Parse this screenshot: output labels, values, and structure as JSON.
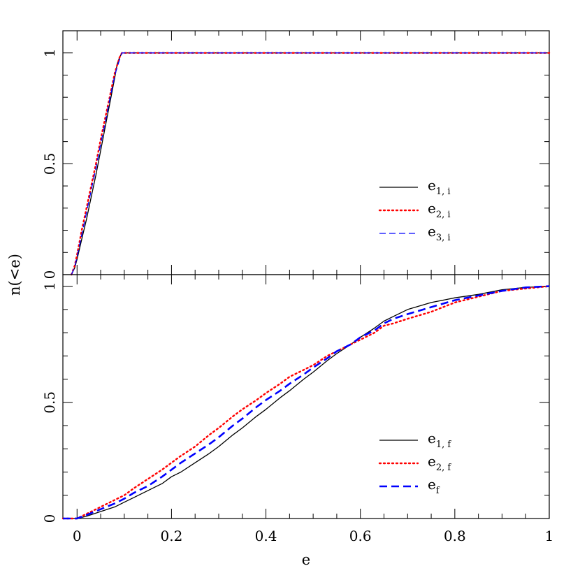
{
  "chart_data": {
    "type": "line",
    "xlabel": "e",
    "ylabel": "n(<e)",
    "xlim": [
      -0.03,
      1.0
    ],
    "x_ticks": [
      0,
      0.2,
      0.4,
      0.6,
      0.8,
      1
    ],
    "x_tick_labels": [
      "0",
      "0.2",
      "0.4",
      "0.6",
      "0.8",
      "1"
    ],
    "grid": false,
    "panels": [
      {
        "ylim": [
          0,
          1.1
        ],
        "y_ticks": [
          0,
          0.5,
          1
        ],
        "y_tick_labels": [
          "0",
          "0.5",
          "1"
        ],
        "legend_position": "center-right",
        "series": [
          {
            "name": "e",
            "sub": "1, i",
            "color": "#000000",
            "style": "solid",
            "x": [
              -0.012,
              -0.005,
              0.0,
              0.01,
              0.02,
              0.03,
              0.04,
              0.05,
              0.06,
              0.07,
              0.08,
              0.085,
              0.09,
              0.095,
              1.0
            ],
            "y": [
              0.0,
              0.03,
              0.07,
              0.16,
              0.25,
              0.35,
              0.45,
              0.56,
              0.67,
              0.78,
              0.89,
              0.95,
              0.98,
              1.0,
              1.0
            ]
          },
          {
            "name": "e",
            "sub": "2, i",
            "color": "#ff0000",
            "style": "dotted",
            "x": [
              -0.012,
              -0.005,
              0.0,
              0.01,
              0.02,
              0.03,
              0.04,
              0.05,
              0.06,
              0.07,
              0.08,
              0.09,
              0.095,
              1.0
            ],
            "y": [
              0.0,
              0.04,
              0.09,
              0.2,
              0.3,
              0.4,
              0.5,
              0.61,
              0.71,
              0.81,
              0.91,
              0.98,
              1.0,
              1.0
            ]
          },
          {
            "name": "e",
            "sub": "3, i",
            "color": "#0000ff",
            "style": "dashed",
            "x": [
              -0.012,
              -0.005,
              0.0,
              0.01,
              0.02,
              0.03,
              0.04,
              0.05,
              0.06,
              0.07,
              0.08,
              0.09,
              0.095,
              1.0
            ],
            "y": [
              0.0,
              0.035,
              0.08,
              0.18,
              0.28,
              0.38,
              0.48,
              0.59,
              0.69,
              0.8,
              0.9,
              0.97,
              1.0,
              1.0
            ]
          }
        ]
      },
      {
        "ylim": [
          0,
          1.05
        ],
        "y_ticks": [
          0,
          0.5,
          1
        ],
        "y_tick_labels": [
          "0",
          "0.5",
          "1"
        ],
        "legend_position": "bottom-right",
        "series": [
          {
            "name": "e",
            "sub": "1, f",
            "color": "#000000",
            "style": "solid",
            "x": [
              -0.03,
              0.0,
              0.02,
              0.05,
              0.08,
              0.1,
              0.12,
              0.15,
              0.18,
              0.2,
              0.22,
              0.25,
              0.28,
              0.3,
              0.33,
              0.35,
              0.38,
              0.4,
              0.43,
              0.45,
              0.48,
              0.5,
              0.53,
              0.55,
              0.58,
              0.6,
              0.63,
              0.65,
              0.67,
              0.7,
              0.75,
              0.8,
              0.85,
              0.9,
              0.95,
              1.0
            ],
            "y": [
              0.0,
              0.0,
              0.01,
              0.03,
              0.05,
              0.07,
              0.09,
              0.12,
              0.15,
              0.18,
              0.2,
              0.24,
              0.28,
              0.31,
              0.36,
              0.39,
              0.44,
              0.47,
              0.52,
              0.55,
              0.6,
              0.63,
              0.68,
              0.71,
              0.75,
              0.78,
              0.82,
              0.85,
              0.87,
              0.9,
              0.93,
              0.95,
              0.965,
              0.985,
              0.995,
              1.0
            ]
          },
          {
            "name": "e",
            "sub": "2, f",
            "color": "#ff0000",
            "style": "dotted",
            "x": [
              -0.03,
              0.0,
              0.02,
              0.05,
              0.08,
              0.1,
              0.12,
              0.15,
              0.18,
              0.2,
              0.22,
              0.25,
              0.28,
              0.3,
              0.33,
              0.35,
              0.38,
              0.4,
              0.43,
              0.45,
              0.48,
              0.5,
              0.53,
              0.55,
              0.58,
              0.6,
              0.63,
              0.65,
              0.67,
              0.7,
              0.75,
              0.8,
              0.85,
              0.9,
              0.95,
              1.0
            ],
            "y": [
              0.0,
              0.0,
              0.02,
              0.05,
              0.08,
              0.1,
              0.13,
              0.17,
              0.21,
              0.24,
              0.27,
              0.31,
              0.36,
              0.39,
              0.44,
              0.47,
              0.51,
              0.54,
              0.58,
              0.61,
              0.64,
              0.66,
              0.7,
              0.72,
              0.75,
              0.77,
              0.8,
              0.83,
              0.84,
              0.86,
              0.89,
              0.93,
              0.955,
              0.98,
              0.99,
              1.0
            ]
          },
          {
            "name": "e",
            "sub": "f",
            "color": "#0000ff",
            "style": "dashed-bold",
            "x": [
              -0.03,
              0.0,
              0.02,
              0.05,
              0.08,
              0.1,
              0.12,
              0.15,
              0.18,
              0.2,
              0.22,
              0.25,
              0.28,
              0.3,
              0.33,
              0.35,
              0.38,
              0.4,
              0.43,
              0.45,
              0.48,
              0.5,
              0.53,
              0.55,
              0.58,
              0.6,
              0.63,
              0.65,
              0.67,
              0.7,
              0.75,
              0.8,
              0.85,
              0.9,
              0.95,
              1.0
            ],
            "y": [
              0.0,
              0.0,
              0.015,
              0.04,
              0.065,
              0.085,
              0.11,
              0.14,
              0.18,
              0.21,
              0.24,
              0.28,
              0.32,
              0.35,
              0.4,
              0.43,
              0.48,
              0.51,
              0.55,
              0.58,
              0.62,
              0.65,
              0.69,
              0.72,
              0.75,
              0.78,
              0.81,
              0.84,
              0.86,
              0.88,
              0.91,
              0.94,
              0.96,
              0.98,
              0.995,
              1.0
            ]
          }
        ]
      }
    ]
  }
}
